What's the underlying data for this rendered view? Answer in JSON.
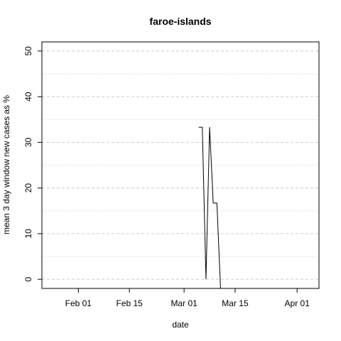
{
  "chart_data": {
    "type": "line",
    "title": "faroe-islands",
    "xlabel": "date",
    "ylabel": "mean  3  day window new cases as %",
    "x_ticks": [
      "Feb 01",
      "Feb 15",
      "Mar 01",
      "Mar 15",
      "Apr 01"
    ],
    "x_tick_dates": [
      "2020-02-01",
      "2020-02-15",
      "2020-03-01",
      "2020-03-15",
      "2020-04-01"
    ],
    "xlim": [
      "2020-01-22",
      "2020-04-07"
    ],
    "y_ticks": [
      0,
      10,
      20,
      30,
      40,
      50
    ],
    "ylim": [
      -2,
      52
    ],
    "grid": {
      "major_dashed": [
        0,
        10,
        20,
        30,
        40,
        50
      ],
      "minor_dotted": [
        5,
        15,
        25,
        35,
        45
      ]
    },
    "series": [
      {
        "color": "#000000",
        "points": [
          [
            "2020-03-05",
            33.3
          ],
          [
            "2020-03-06",
            33.3
          ],
          [
            "2020-03-07",
            0
          ],
          [
            "2020-03-08",
            33.3
          ],
          [
            "2020-03-09",
            16.7
          ],
          [
            "2020-03-10",
            16.7
          ],
          [
            "2020-03-11",
            -2
          ]
        ]
      }
    ]
  }
}
